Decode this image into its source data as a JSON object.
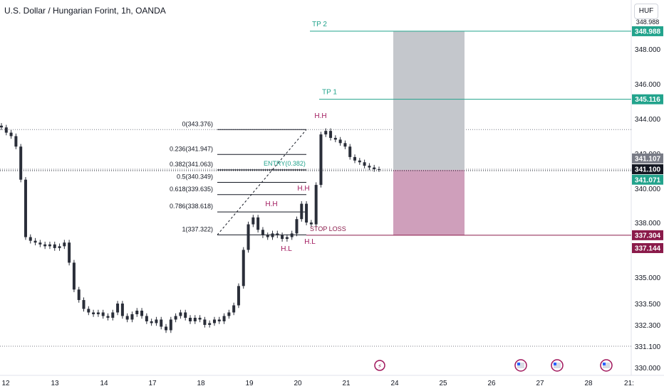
{
  "header": {
    "title": "U.S. Dollar / Hungarian Forint, 1h, OANDA",
    "currency": "HUF"
  },
  "colors": {
    "candle": "#2a2e39",
    "tp": "#22a38c",
    "stop": "#8a1a4a",
    "hh": "#a0175c",
    "fib": "#131722",
    "profit_zone": "#c4c7cc",
    "loss_zone": "#cf9fbb"
  },
  "chart_data": {
    "type": "candlestick",
    "title": "U.S. Dollar / Hungarian Forint, 1h, OANDA",
    "x_tick_labels": [
      "12",
      "13",
      "14",
      "17",
      "18",
      "19",
      "20",
      "21",
      "24",
      "25",
      "26",
      "27",
      "28",
      "21:"
    ],
    "y_tick_labels": [
      348.0,
      346.0,
      344.0,
      342.0,
      340.0,
      338.0,
      335.0,
      333.5,
      332.3,
      331.1,
      330.0
    ],
    "ylim": [
      330.0,
      350.0
    ],
    "grid": false,
    "price_series": [
      343.5,
      343.2,
      343.0,
      342.4,
      340.5,
      337.2,
      337.0,
      336.9,
      336.8,
      336.7,
      336.8,
      336.6,
      336.7,
      336.9,
      335.8,
      334.3,
      333.7,
      333.2,
      333.0,
      332.9,
      333.0,
      332.8,
      332.7,
      333.0,
      333.5,
      332.8,
      332.6,
      332.9,
      333.1,
      332.8,
      332.5,
      332.4,
      332.6,
      332.2,
      332.0,
      332.6,
      332.8,
      333.0,
      332.7,
      332.5,
      332.7,
      332.6,
      332.3,
      332.4,
      332.6,
      332.5,
      332.8,
      333.0,
      333.4,
      334.5,
      336.5,
      337.9,
      338.3,
      337.6,
      337.3,
      337.2,
      337.4,
      337.3,
      337.1,
      337.2,
      337.4,
      338.2,
      339.1,
      338.0,
      337.9,
      340.2,
      343.1,
      343.3,
      342.9,
      342.8,
      342.6,
      342.4,
      341.8,
      341.6,
      341.5,
      341.3,
      341.2,
      341.1,
      341.1
    ],
    "series": [
      {
        "name": "TP 2",
        "value": 348.988
      },
      {
        "name": "TP 1",
        "value": 345.116
      },
      {
        "name": "STOP LOSS",
        "value": 337.304
      }
    ],
    "price_labels": [
      {
        "value": 348.988,
        "label": "348.988",
        "kind": "tp"
      },
      {
        "value": 345.116,
        "label": "345.116",
        "kind": "tp"
      },
      {
        "value": 341.107,
        "label": "341.107",
        "kind": "grey"
      },
      {
        "value": 341.1,
        "label": "341.100",
        "kind": "current"
      },
      {
        "value": 341.071,
        "label": "341.071",
        "kind": "tp"
      },
      {
        "value": 337.304,
        "label": "337.304",
        "kind": "stop"
      },
      {
        "value": 337.144,
        "label": "337.144",
        "kind": "stop"
      }
    ],
    "fib_levels": [
      {
        "ratio": "0",
        "value": 343.376,
        "label": "0(343.376)"
      },
      {
        "ratio": "0.236",
        "value": 341.947,
        "label": "0.236(341.947)"
      },
      {
        "ratio": "0.382",
        "value": 341.063,
        "label": "0.382(341.063)"
      },
      {
        "ratio": "0.5",
        "value": 340.349,
        "label": "0.5(340.349)"
      },
      {
        "ratio": "0.618",
        "value": 339.635,
        "label": "0.618(339.635)"
      },
      {
        "ratio": "0.786",
        "value": 338.618,
        "label": "0.786(338.618)"
      },
      {
        "ratio": "1",
        "value": 337.322,
        "label": "1(337.322)"
      }
    ],
    "annotations": [
      {
        "text": "ENTRY(0.382)",
        "kind": "tp"
      },
      {
        "text": "TP 1",
        "kind": "tp"
      },
      {
        "text": "TP 2",
        "kind": "tp"
      },
      {
        "text": "STOP LOSS",
        "kind": "stop"
      },
      {
        "text": "H.H",
        "kind": "hh"
      },
      {
        "text": "H.H",
        "kind": "hh"
      },
      {
        "text": "H.H",
        "kind": "hh"
      },
      {
        "text": "H.L",
        "kind": "hh"
      },
      {
        "text": "H.L",
        "kind": "hh"
      }
    ]
  }
}
